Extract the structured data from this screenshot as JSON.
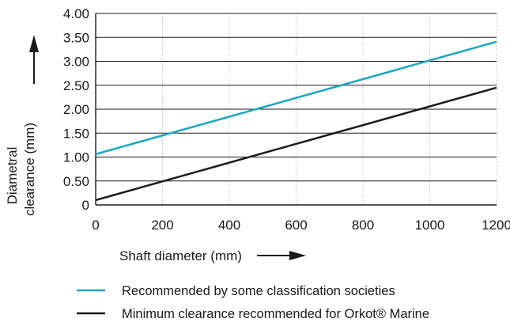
{
  "chart_data": {
    "type": "line",
    "title": "",
    "xlabel": "Shaft diameter (mm)",
    "ylabel_lines": [
      "Diametral",
      "clearance (mm)"
    ],
    "xlim": [
      0,
      1200
    ],
    "ylim": [
      0,
      4
    ],
    "x_ticks": [
      "0",
      "200",
      "400",
      "600",
      "800",
      "1000",
      "1200"
    ],
    "y_ticks": [
      "0",
      "0.50",
      "1.00",
      "1.50",
      "2.00",
      "2.50",
      "3.00",
      "3.50",
      "4.00"
    ],
    "grid": {
      "horizontal": true,
      "vertical_dotted": true
    },
    "legend_position": "bottom",
    "series": [
      {
        "name": "Recommended by some classification societies",
        "color": "#1aa7c1",
        "x": [
          0,
          1200
        ],
        "y": [
          1.06,
          3.41
        ]
      },
      {
        "name": "Minimum clearance recommended for Orkot® Marine",
        "color": "#1a1a1a",
        "x": [
          0,
          1200
        ],
        "y": [
          0.1,
          2.45
        ]
      }
    ]
  }
}
